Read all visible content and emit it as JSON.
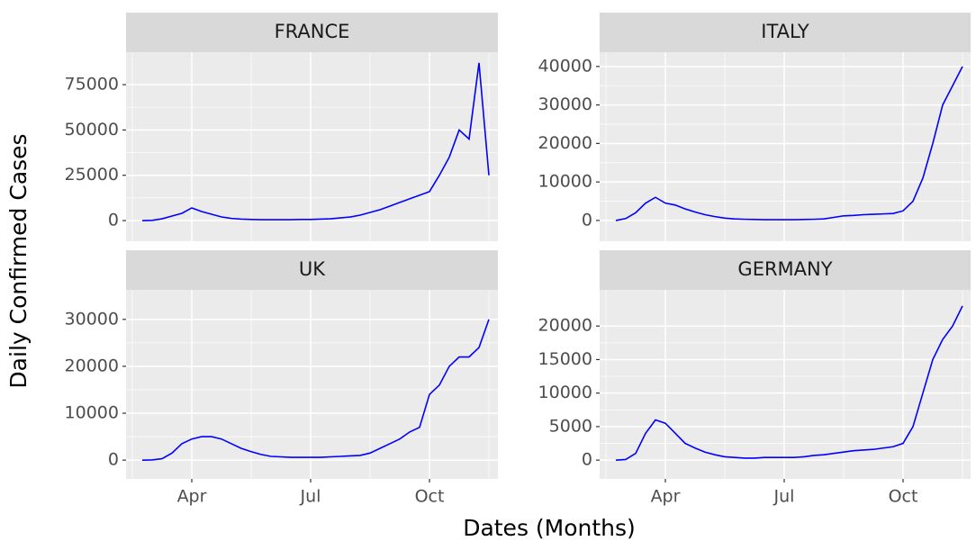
{
  "xlabel": "Dates (Months)",
  "ylabel": "Daily Confirmed Cases",
  "chart_data": [
    {
      "type": "line",
      "title": "FRANCE",
      "color": "#0000ff",
      "grid": true,
      "categories": [
        null,
        null,
        null,
        null,
        null,
        "Apr",
        null,
        null,
        null,
        null,
        null,
        null,
        null,
        null,
        null,
        null,
        null,
        "Jul",
        null,
        null,
        null,
        null,
        null,
        null,
        null,
        null,
        null,
        null,
        null,
        "Oct",
        null,
        null,
        null,
        null,
        null,
        null
      ],
      "values": [
        0,
        100,
        1000,
        2500,
        4000,
        7000,
        5000,
        3500,
        2000,
        1200,
        800,
        600,
        500,
        500,
        500,
        500,
        600,
        600,
        800,
        1000,
        1500,
        2000,
        3000,
        4500,
        6000,
        8000,
        10000,
        12000,
        14000,
        16000,
        25000,
        35000,
        50000,
        45000,
        87000,
        25000
      ],
      "ylim": [
        -11400,
        92900
      ],
      "yticks": [
        0,
        25000,
        50000,
        75000
      ]
    },
    {
      "type": "line",
      "title": "ITALY",
      "color": "#0000ff",
      "grid": true,
      "categories": [
        null,
        null,
        null,
        null,
        null,
        "Apr",
        null,
        null,
        null,
        null,
        null,
        null,
        null,
        null,
        null,
        null,
        null,
        "Jul",
        null,
        null,
        null,
        null,
        null,
        null,
        null,
        null,
        null,
        null,
        null,
        "Oct",
        null,
        null,
        null,
        null,
        null,
        null
      ],
      "values": [
        0,
        500,
        2000,
        4500,
        6000,
        4500,
        4000,
        3000,
        2200,
        1500,
        1000,
        600,
        400,
        300,
        250,
        200,
        200,
        200,
        200,
        250,
        300,
        400,
        800,
        1200,
        1300,
        1500,
        1600,
        1700,
        1800,
        2500,
        5000,
        11000,
        20000,
        30000,
        35000,
        40000
      ],
      "ylim": [
        -5400,
        43700
      ],
      "yticks": [
        0,
        10000,
        20000,
        30000,
        40000
      ]
    },
    {
      "type": "line",
      "title": "UK",
      "color": "#0000ff",
      "grid": true,
      "categories": [
        null,
        null,
        null,
        null,
        null,
        "Apr",
        null,
        null,
        null,
        null,
        null,
        null,
        null,
        null,
        null,
        null,
        null,
        "Jul",
        null,
        null,
        null,
        null,
        null,
        null,
        null,
        null,
        null,
        null,
        null,
        "Oct",
        null,
        null,
        null,
        null,
        null,
        null
      ],
      "values": [
        0,
        50,
        300,
        1500,
        3500,
        4500,
        5000,
        5000,
        4500,
        3500,
        2500,
        1800,
        1200,
        800,
        700,
        600,
        600,
        600,
        600,
        700,
        800,
        900,
        1000,
        1500,
        2500,
        3500,
        4500,
        6000,
        7000,
        14000,
        16000,
        20000,
        22000,
        22000,
        24000,
        30000
      ],
      "ylim": [
        -4000,
        36300
      ],
      "yticks": [
        0,
        10000,
        20000,
        30000
      ]
    },
    {
      "type": "line",
      "title": "GERMANY",
      "color": "#0000ff",
      "grid": true,
      "categories": [
        null,
        null,
        null,
        null,
        null,
        "Apr",
        null,
        null,
        null,
        null,
        null,
        null,
        null,
        null,
        null,
        null,
        null,
        "Jul",
        null,
        null,
        null,
        null,
        null,
        null,
        null,
        null,
        null,
        null,
        null,
        "Oct",
        null,
        null,
        null,
        null,
        null,
        null
      ],
      "values": [
        0,
        100,
        1000,
        4000,
        6000,
        5500,
        4000,
        2500,
        1800,
        1200,
        800,
        500,
        400,
        300,
        300,
        400,
        400,
        400,
        400,
        500,
        700,
        800,
        1000,
        1200,
        1400,
        1500,
        1600,
        1800,
        2000,
        2500,
        5000,
        10000,
        15000,
        18000,
        20000,
        23000
      ],
      "ylim": [
        -2800,
        25400
      ],
      "yticks": [
        0,
        5000,
        10000,
        15000,
        20000
      ]
    }
  ]
}
